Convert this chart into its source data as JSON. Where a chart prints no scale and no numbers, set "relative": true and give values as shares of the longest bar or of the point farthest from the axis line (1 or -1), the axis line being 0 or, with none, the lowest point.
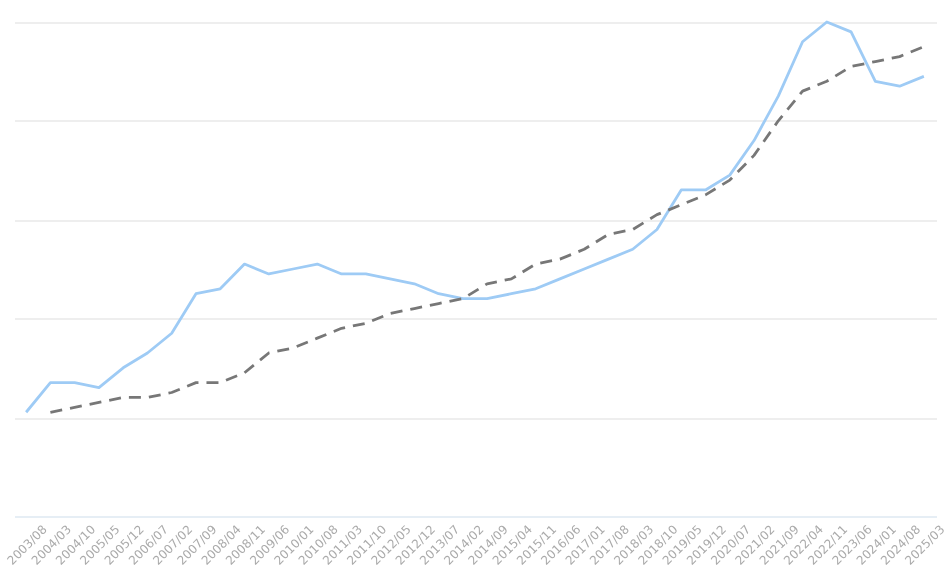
{
  "chart_data": {
    "type": "line",
    "relative": true,
    "grid": "y",
    "marker": "none",
    "categories": [
      "2003/08",
      "2004/03",
      "2004/10",
      "2005/05",
      "2005/12",
      "2006/07",
      "2007/02",
      "2007/09",
      "2008/04",
      "2008/11",
      "2009/06",
      "2010/01",
      "2010/08",
      "2011/03",
      "2011/10",
      "2012/05",
      "2012/12",
      "2013/07",
      "2014/02",
      "2014/09",
      "2015/04",
      "2015/11",
      "2016/06",
      "2017/01",
      "2017/08",
      "2018/03",
      "2018/10",
      "2019/05",
      "2019/12",
      "2020/07",
      "2021/02",
      "2021/09",
      "2022/04",
      "2022/11",
      "2023/06",
      "2024/01",
      "2024/08",
      "2025/03"
    ],
    "series": [
      {
        "color": "#9ecbf5",
        "line_style": "solid",
        "values": [
          0.21,
          0.27,
          0.27,
          0.26,
          0.3,
          0.33,
          0.37,
          0.45,
          0.46,
          0.51,
          0.49,
          0.5,
          0.51,
          0.49,
          0.49,
          0.48,
          0.47,
          0.45,
          0.44,
          0.44,
          0.45,
          0.46,
          0.48,
          0.5,
          0.52,
          0.54,
          0.58,
          0.66,
          0.66,
          0.69,
          0.76,
          0.85,
          0.96,
          1,
          0.98,
          0.88,
          0.87,
          0.89
        ]
      },
      {
        "color": "#777777",
        "line_style": "dashed",
        "values": [
          null,
          0.21,
          0.22,
          0.23,
          0.24,
          0.24,
          0.25,
          0.27,
          0.27,
          0.29,
          0.33,
          0.34,
          0.36,
          0.38,
          0.39,
          0.41,
          0.42,
          0.43,
          0.44,
          0.47,
          0.48,
          0.51,
          0.52,
          0.54,
          0.57,
          0.58,
          0.61,
          0.63,
          0.65,
          0.68,
          0.73,
          0.8,
          0.86,
          0.88,
          0.91,
          0.92,
          0.93,
          0.95
        ]
      }
    ]
  }
}
